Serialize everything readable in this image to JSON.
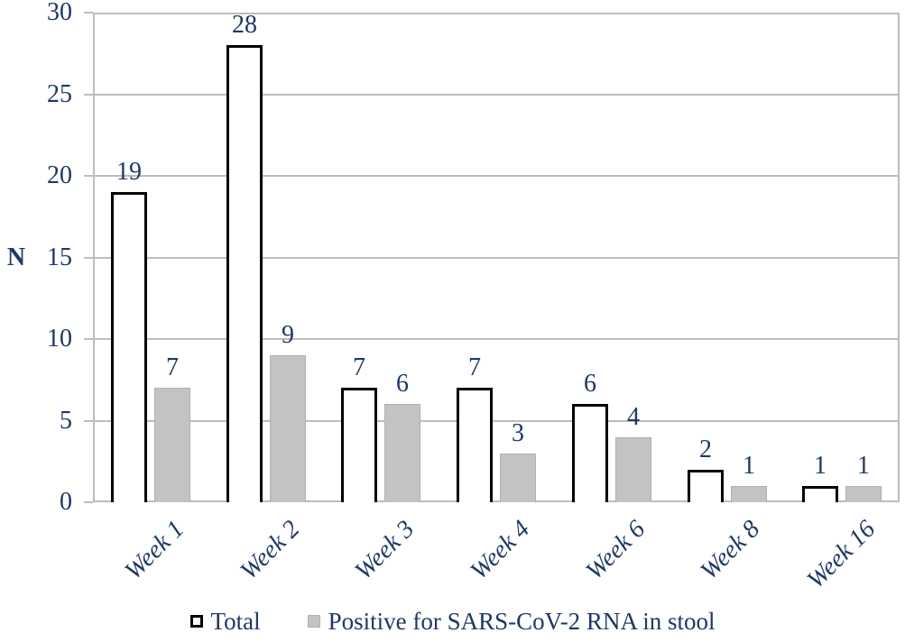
{
  "chart_data": {
    "type": "bar",
    "title": "",
    "xlabel": "",
    "ylabel": "N",
    "ylim": [
      0,
      30
    ],
    "y_ticks": [
      0,
      5,
      10,
      15,
      20,
      25,
      30
    ],
    "grid": true,
    "data_labels": true,
    "legend_position": "bottom",
    "categories": [
      "Week 1",
      "Week 2",
      "Week 3",
      "Week 4",
      "Week 6",
      "Week 8",
      "Week 16"
    ],
    "series": [
      {
        "name": "Total",
        "values": [
          19,
          28,
          7,
          7,
          6,
          2,
          1
        ]
      },
      {
        "name": "Positive for SARS-CoV-2 RNA in stool",
        "values": [
          7,
          9,
          6,
          3,
          4,
          1,
          1
        ]
      }
    ]
  },
  "colors": {
    "background": "#ffffff",
    "text": "#1F3864",
    "grid": "#bdbdbd",
    "plot_border": "#bdbdbd",
    "total_fill": "#ffffff",
    "total_border": "#000000",
    "positive_fill": "#c3c3c3",
    "positive_border": "#b0b0b0"
  }
}
